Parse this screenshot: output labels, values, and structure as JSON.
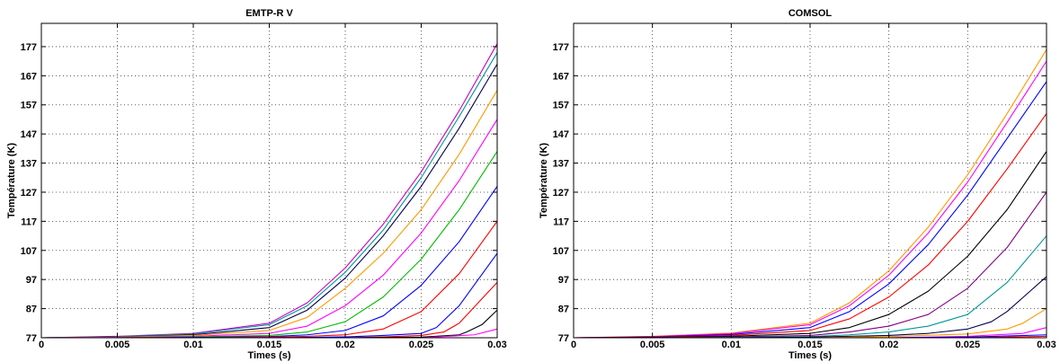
{
  "chart_data": [
    {
      "type": "line",
      "title": "EMTP-R V",
      "xlabel": "Times (s)",
      "ylabel": "Température (K)",
      "xlim": [
        0,
        0.03
      ],
      "ylim": [
        77,
        185
      ],
      "xticks": [
        0,
        0.005,
        0.01,
        0.015,
        0.02,
        0.025,
        0.03
      ],
      "xtick_labels": [
        "0",
        "0.005",
        "0.01",
        "0.015",
        "0.02",
        "0.025",
        "0.03"
      ],
      "yticks": [
        77,
        87,
        97,
        107,
        117,
        127,
        137,
        147,
        157,
        167,
        177
      ],
      "ytick_labels": [
        "77",
        "87",
        "97",
        "107",
        "117",
        "127",
        "137",
        "147",
        "157",
        "167",
        "177"
      ],
      "grid": true,
      "series": [
        {
          "color": "#c800c8",
          "x": [
            0,
            0.005,
            0.01,
            0.015,
            0.0175,
            0.02,
            0.0225,
            0.025,
            0.0275,
            0.03
          ],
          "values": [
            77,
            77.5,
            78.5,
            82,
            89,
            101,
            116,
            134,
            155,
            178
          ]
        },
        {
          "color": "#009696",
          "x": [
            0,
            0.005,
            0.01,
            0.015,
            0.0175,
            0.02,
            0.0225,
            0.025,
            0.0275,
            0.03
          ],
          "values": [
            77,
            77.4,
            78.3,
            81.5,
            88,
            99.5,
            114,
            132,
            153,
            175
          ]
        },
        {
          "color": "#000050",
          "x": [
            0,
            0.005,
            0.01,
            0.015,
            0.0175,
            0.02,
            0.0225,
            0.025,
            0.0275,
            0.03
          ],
          "values": [
            77,
            77.3,
            78,
            80.5,
            86.5,
            97.5,
            112,
            129,
            149,
            171
          ]
        },
        {
          "color": "#ff9900",
          "x": [
            0,
            0.005,
            0.01,
            0.015,
            0.0175,
            0.02,
            0.0225,
            0.025,
            0.0275,
            0.03
          ],
          "values": [
            77,
            77.2,
            77.8,
            79.5,
            84,
            94,
            106,
            121,
            140,
            162
          ]
        },
        {
          "color": "#ff00ff",
          "x": [
            0,
            0.005,
            0.01,
            0.015,
            0.0175,
            0.02,
            0.0225,
            0.025,
            0.0275,
            0.03
          ],
          "values": [
            77,
            77.1,
            77.5,
            78.5,
            81,
            88,
            98.5,
            113,
            131,
            152
          ]
        },
        {
          "color": "#00bb00",
          "x": [
            0,
            0.005,
            0.01,
            0.015,
            0.0175,
            0.02,
            0.0225,
            0.025,
            0.0275,
            0.03
          ],
          "values": [
            77,
            77,
            77.3,
            77.8,
            79,
            82.5,
            91,
            104,
            121,
            141
          ]
        },
        {
          "color": "#0000ff",
          "x": [
            0,
            0.005,
            0.01,
            0.015,
            0.0175,
            0.02,
            0.0225,
            0.025,
            0.0275,
            0.03
          ],
          "values": [
            77,
            77,
            77.1,
            77.4,
            78,
            79.5,
            84.5,
            95,
            110,
            129
          ]
        },
        {
          "color": "#ff0000",
          "x": [
            0,
            0.005,
            0.01,
            0.015,
            0.0175,
            0.02,
            0.0225,
            0.025,
            0.0275,
            0.03
          ],
          "values": [
            77,
            77,
            77,
            77.2,
            77.5,
            78,
            80,
            86,
            99,
            117
          ]
        },
        {
          "color": "#0000ff",
          "x": [
            0,
            0.005,
            0.01,
            0.015,
            0.02,
            0.0225,
            0.025,
            0.026,
            0.0275,
            0.03
          ],
          "values": [
            77,
            77,
            77,
            77,
            77.3,
            77.8,
            78.5,
            80.5,
            88,
            106
          ]
        },
        {
          "color": "#ff0000",
          "x": [
            0,
            0.005,
            0.01,
            0.015,
            0.02,
            0.0225,
            0.025,
            0.0265,
            0.0275,
            0.03
          ],
          "values": [
            77,
            77,
            77,
            77,
            77,
            77.3,
            77.8,
            79,
            82,
            96
          ]
        },
        {
          "color": "#000000",
          "x": [
            0,
            0.005,
            0.01,
            0.015,
            0.02,
            0.025,
            0.0275,
            0.028,
            0.029,
            0.03
          ],
          "values": [
            77,
            77,
            77,
            77,
            77,
            77.2,
            78,
            79,
            81.5,
            86.5
          ]
        },
        {
          "color": "#ff00ff",
          "x": [
            0,
            0.005,
            0.01,
            0.015,
            0.02,
            0.025,
            0.0285,
            0.03
          ],
          "values": [
            77,
            77,
            77,
            77,
            77,
            77,
            78,
            80
          ]
        }
      ]
    },
    {
      "type": "line",
      "title": "COMSOL",
      "xlabel": "Times (s)",
      "ylabel": "Température (K)",
      "xlim": [
        0,
        0.03
      ],
      "ylim": [
        77,
        185
      ],
      "xticks": [
        0,
        0.005,
        0.01,
        0.015,
        0.02,
        0.025,
        0.03
      ],
      "xtick_labels": [
        "0",
        "0.005",
        "0.01",
        "0.015",
        "0.02",
        "0.025",
        "0.03"
      ],
      "yticks": [
        77,
        87,
        97,
        107,
        117,
        127,
        137,
        147,
        157,
        167,
        177
      ],
      "ytick_labels": [
        "77",
        "87",
        "97",
        "107",
        "117",
        "127",
        "137",
        "147",
        "157",
        "167",
        "177"
      ],
      "grid": true,
      "series": [
        {
          "color": "#ff9900",
          "x": [
            0,
            0.005,
            0.01,
            0.015,
            0.0175,
            0.02,
            0.0225,
            0.025,
            0.0275,
            0.03
          ],
          "values": [
            77,
            77.5,
            78.6,
            82,
            89,
            100,
            115,
            133,
            154,
            176
          ]
        },
        {
          "color": "#ff00ff",
          "x": [
            0,
            0.005,
            0.01,
            0.015,
            0.0175,
            0.02,
            0.0225,
            0.025,
            0.0275,
            0.03
          ],
          "values": [
            77,
            77.4,
            78.4,
            81.5,
            88,
            98.5,
            113,
            130.5,
            151,
            172
          ]
        },
        {
          "color": "#0000ff",
          "x": [
            0,
            0.005,
            0.01,
            0.015,
            0.0175,
            0.02,
            0.0225,
            0.025,
            0.0275,
            0.03
          ],
          "values": [
            77,
            77.3,
            78.1,
            80.5,
            86,
            95.5,
            109,
            126,
            145.5,
            165
          ]
        },
        {
          "color": "#ff0000",
          "x": [
            0,
            0.005,
            0.01,
            0.015,
            0.0175,
            0.02,
            0.0225,
            0.025,
            0.0275,
            0.03
          ],
          "values": [
            77,
            77.2,
            77.8,
            79.5,
            83.5,
            91,
            102,
            117,
            135,
            154
          ]
        },
        {
          "color": "#000000",
          "x": [
            0,
            0.005,
            0.01,
            0.015,
            0.0175,
            0.02,
            0.0225,
            0.025,
            0.0275,
            0.03
          ],
          "values": [
            77,
            77.1,
            77.5,
            78.5,
            80.5,
            85,
            93,
            105,
            121,
            141
          ]
        },
        {
          "color": "#800080",
          "x": [
            0,
            0.005,
            0.01,
            0.015,
            0.0175,
            0.02,
            0.0225,
            0.025,
            0.0275,
            0.03
          ],
          "values": [
            77,
            77,
            77.3,
            77.8,
            79,
            81,
            85,
            94,
            108,
            127
          ]
        },
        {
          "color": "#009696",
          "x": [
            0,
            0.005,
            0.01,
            0.015,
            0.0175,
            0.02,
            0.0225,
            0.025,
            0.0275,
            0.03
          ],
          "values": [
            77,
            77,
            77.1,
            77.4,
            78,
            79,
            81,
            85,
            96,
            112
          ]
        },
        {
          "color": "#000050",
          "x": [
            0,
            0.005,
            0.01,
            0.015,
            0.02,
            0.0225,
            0.025,
            0.0265,
            0.0275,
            0.03
          ],
          "values": [
            77,
            77,
            77,
            77.2,
            77.8,
            78.5,
            80,
            82.5,
            86,
            98
          ]
        },
        {
          "color": "#ff9900",
          "x": [
            0,
            0.005,
            0.01,
            0.015,
            0.02,
            0.025,
            0.0275,
            0.0285,
            0.03
          ],
          "values": [
            77,
            77,
            77,
            77,
            77.4,
            78.3,
            80,
            82,
            87
          ]
        },
        {
          "color": "#ff00ff",
          "x": [
            0,
            0.005,
            0.01,
            0.015,
            0.02,
            0.025,
            0.0285,
            0.03
          ],
          "values": [
            77,
            77,
            77,
            77,
            77,
            77.5,
            78.5,
            80.5
          ]
        },
        {
          "color": "#0000ff",
          "x": [
            0,
            0.005,
            0.01,
            0.015,
            0.02,
            0.025,
            0.03
          ],
          "values": [
            77,
            77,
            77,
            77,
            77,
            77.2,
            78
          ]
        },
        {
          "color": "#ff0000",
          "x": [
            0,
            0.005,
            0.01,
            0.015,
            0.02,
            0.025,
            0.03
          ],
          "values": [
            77,
            77,
            77,
            77,
            77,
            77,
            77.5
          ]
        }
      ]
    }
  ]
}
